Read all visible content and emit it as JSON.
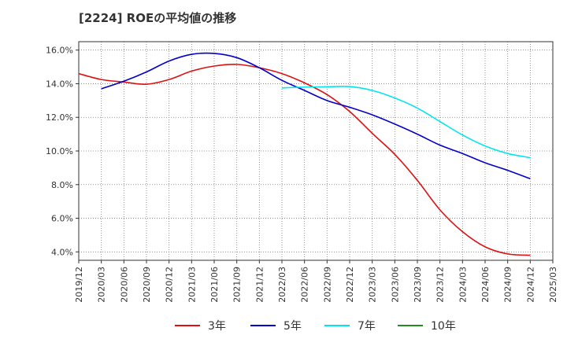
{
  "chart_data": {
    "type": "line",
    "title": "[2224]  ROEの平均値の推移",
    "xlabel": "",
    "ylabel": "",
    "ylim": [
      3.5,
      16.5
    ],
    "y_ticks": [
      4,
      6,
      8,
      10,
      12,
      14,
      16
    ],
    "y_tick_labels": [
      "4.0%",
      "6.0%",
      "8.0%",
      "10.0%",
      "12.0%",
      "14.0%",
      "16.0%"
    ],
    "x_tick_labels": [
      "2019/12",
      "2020/03",
      "2020/06",
      "2020/09",
      "2020/12",
      "2021/03",
      "2021/06",
      "2021/09",
      "2021/12",
      "2022/03",
      "2022/06",
      "2022/09",
      "2022/12",
      "2023/03",
      "2023/06",
      "2023/09",
      "2023/12",
      "2024/03",
      "2024/06",
      "2024/09",
      "2024/12",
      "2025/03"
    ],
    "grid": true,
    "legend_position": "bottom",
    "series": [
      {
        "name": "3年",
        "color": "#dd1111",
        "values": [
          14.6,
          14.25,
          14.1,
          13.97,
          14.25,
          14.75,
          15.05,
          15.15,
          14.95,
          14.6,
          14.05,
          13.35,
          12.35,
          11.05,
          9.8,
          8.25,
          6.5,
          5.2,
          4.3,
          3.88,
          3.8,
          null
        ]
      },
      {
        "name": "5年",
        "color": "#0000cc",
        "values": [
          null,
          13.7,
          14.15,
          14.7,
          15.35,
          15.75,
          15.8,
          15.55,
          14.95,
          14.2,
          13.6,
          13.0,
          12.6,
          12.15,
          11.6,
          11.0,
          10.35,
          9.85,
          9.3,
          8.85,
          8.35,
          null
        ]
      },
      {
        "name": "7年",
        "color": "#00e5ee",
        "values": [
          null,
          null,
          null,
          null,
          null,
          null,
          null,
          null,
          null,
          13.75,
          13.8,
          13.82,
          13.83,
          13.6,
          13.15,
          12.55,
          11.75,
          10.95,
          10.3,
          9.85,
          9.6,
          null
        ]
      },
      {
        "name": "10年",
        "color": "#228b22",
        "values": [
          null,
          null,
          null,
          null,
          null,
          null,
          null,
          null,
          null,
          null,
          null,
          null,
          null,
          null,
          null,
          null,
          null,
          null,
          null,
          null,
          null,
          null
        ]
      }
    ]
  }
}
